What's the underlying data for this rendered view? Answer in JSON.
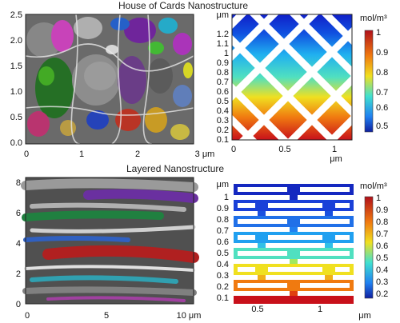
{
  "panels": {
    "top_title": "House of Cards Nanostructure",
    "bottom_title": "Layered Nanostructure",
    "top_left": {
      "y_ticks": [
        "2.5",
        "2.0",
        "1.5",
        "1.0",
        "0.5",
        "0.0"
      ],
      "x_ticks": [
        "0",
        "1",
        "2"
      ],
      "x_last": "3 μm"
    },
    "top_right": {
      "unit_label": "μm",
      "y_ticks": [
        "1.2",
        "1.1",
        "1",
        "0.9",
        "0.8",
        "0.7",
        "0.6",
        "0.5",
        "0.4",
        "0.3",
        "0.2",
        "0.1"
      ],
      "x_ticks": [
        "0",
        "0.5",
        "1"
      ],
      "x_unit": "μm",
      "colorbar_unit": "mol/m³",
      "colorbar_ticks": [
        "1",
        "0.9",
        "0.8",
        "0.7",
        "0.6",
        "0.5"
      ]
    },
    "bottom_left": {
      "y_ticks": [
        "8",
        "6",
        "4",
        "2",
        "0"
      ],
      "x_ticks": [
        "0",
        "5"
      ],
      "x_last": "10 μm"
    },
    "bottom_right": {
      "unit_label": "μm",
      "y_ticks": [
        "1",
        "0.9",
        "0.8",
        "0.7",
        "0.6",
        "0.5",
        "0.4",
        "0.3",
        "0.2",
        "0.1"
      ],
      "x_ticks": [
        "0.5",
        "1"
      ],
      "x_unit": "μm",
      "colorbar_unit": "mol/m³",
      "colorbar_ticks": [
        "1",
        "0.9",
        "0.8",
        "0.7",
        "0.6",
        "0.5",
        "0.4",
        "0.3",
        "0.2"
      ]
    }
  },
  "colors": {
    "high": "#c8101a",
    "mid": "#f0e020",
    "low": "#1020c8"
  }
}
